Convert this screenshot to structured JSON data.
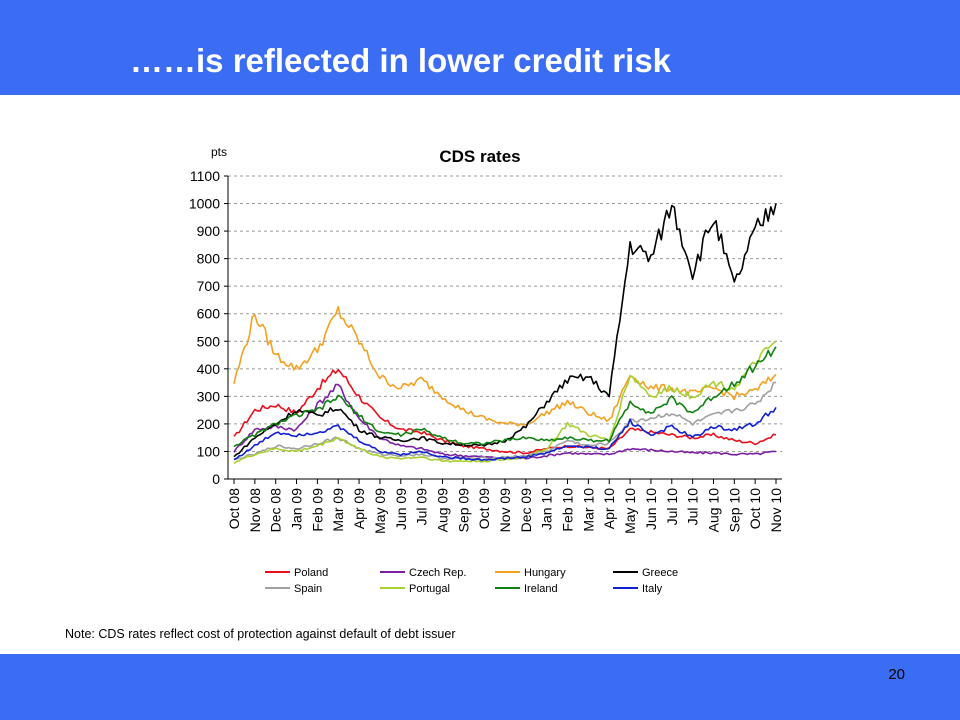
{
  "slide": {
    "title": "……is reflected in lower credit risk",
    "note": "Note: CDS rates reflect cost of protection against default of debt issuer",
    "page_number": "20",
    "band_color": "#3b6cf4"
  },
  "chart_data": {
    "type": "line",
    "title": "CDS rates",
    "ylabel": "pts",
    "xlabel": "",
    "ylim": [
      0,
      1100
    ],
    "yticks": [
      0,
      100,
      200,
      300,
      400,
      500,
      600,
      700,
      800,
      900,
      1000,
      1100
    ],
    "grid": "horizontal dashed",
    "legend_position": "bottom",
    "x_categories": [
      "Oct 08",
      "Nov 08",
      "Dec 08",
      "Jan 09",
      "Feb 09",
      "Mar 09",
      "Apr 09",
      "May 09",
      "Jun 09",
      "Jul 09",
      "Aug 09",
      "Sep 09",
      "Oct 09",
      "Nov 09",
      "Dec 09",
      "Jan 10",
      "Feb 10",
      "Mar 10",
      "Apr 10",
      "May 10",
      "Jun 10",
      "Jul 10",
      "Jul 10",
      "Aug 10",
      "Sep 10",
      "Oct 10",
      "Nov 10"
    ],
    "series": [
      {
        "name": "Poland",
        "color": "#e8101a",
        "values": [
          150,
          250,
          270,
          240,
          330,
          400,
          300,
          220,
          180,
          170,
          140,
          120,
          110,
          100,
          95,
          110,
          120,
          115,
          110,
          180,
          170,
          160,
          150,
          160,
          140,
          130,
          160
        ]
      },
      {
        "name": "Czech Rep.",
        "color": "#7a1fa2",
        "values": [
          100,
          180,
          190,
          180,
          270,
          340,
          220,
          150,
          120,
          110,
          90,
          85,
          80,
          75,
          75,
          85,
          95,
          90,
          90,
          110,
          105,
          100,
          95,
          95,
          90,
          90,
          100
        ]
      },
      {
        "name": "Hungary",
        "color": "#f4a020",
        "values": [
          350,
          600,
          450,
          400,
          470,
          610,
          500,
          370,
          330,
          360,
          300,
          250,
          220,
          200,
          200,
          240,
          280,
          240,
          210,
          380,
          330,
          330,
          310,
          330,
          300,
          320,
          380
        ]
      },
      {
        "name": "Greece",
        "color": "#000000",
        "values": [
          80,
          150,
          200,
          250,
          230,
          260,
          180,
          150,
          140,
          150,
          130,
          125,
          120,
          140,
          190,
          280,
          360,
          370,
          300,
          850,
          800,
          1000,
          750,
          950,
          700,
          900,
          1000
        ]
      },
      {
        "name": "Spain",
        "color": "#a0a0a0",
        "values": [
          70,
          90,
          120,
          110,
          130,
          150,
          110,
          90,
          85,
          90,
          75,
          75,
          75,
          80,
          85,
          100,
          140,
          120,
          130,
          210,
          220,
          240,
          200,
          230,
          250,
          270,
          350
        ]
      },
      {
        "name": "Portugal",
        "color": "#a8d030",
        "values": [
          60,
          90,
          110,
          100,
          120,
          150,
          110,
          80,
          75,
          80,
          65,
          65,
          65,
          70,
          80,
          110,
          200,
          160,
          140,
          380,
          300,
          330,
          300,
          350,
          330,
          420,
          500
        ]
      },
      {
        "name": "Ireland",
        "color": "#108010",
        "values": [
          120,
          160,
          200,
          230,
          250,
          300,
          230,
          170,
          160,
          180,
          150,
          130,
          130,
          140,
          150,
          140,
          150,
          140,
          140,
          280,
          240,
          290,
          240,
          300,
          350,
          410,
          480
        ]
      },
      {
        "name": "Italy",
        "color": "#1020d0",
        "values": [
          70,
          120,
          170,
          160,
          170,
          190,
          140,
          100,
          90,
          100,
          80,
          75,
          70,
          75,
          80,
          95,
          120,
          115,
          110,
          210,
          160,
          190,
          150,
          190,
          180,
          200,
          260
        ]
      }
    ]
  }
}
